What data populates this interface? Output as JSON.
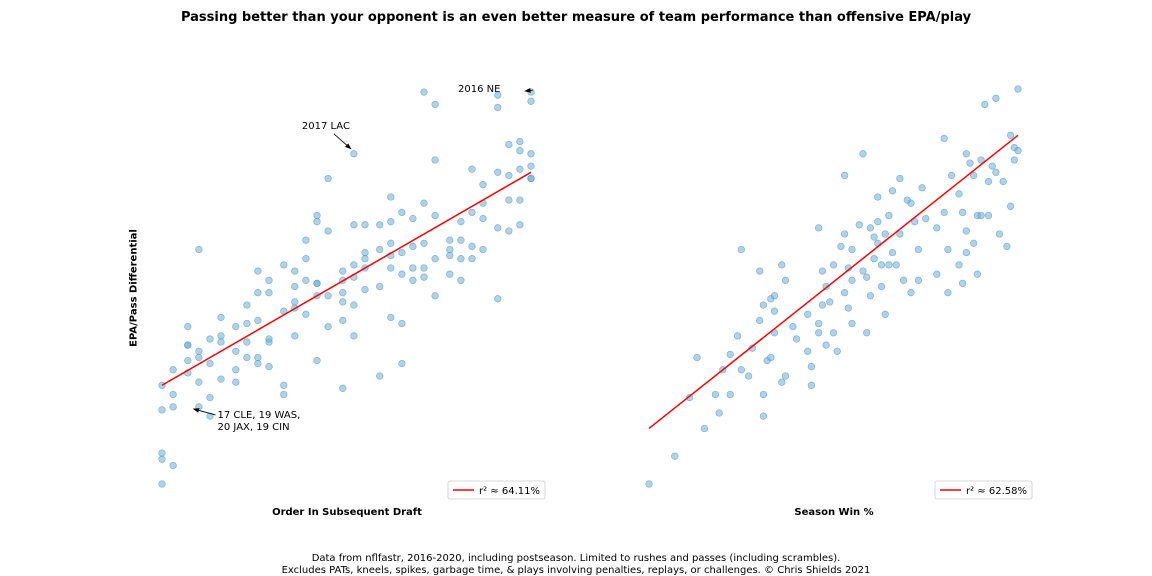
{
  "title": "Passing better than your opponent is an even better measure of team performance than offensive EPA/play",
  "ylabel": "EPA/Pass Differential",
  "caption_line1": "Data from nflfastr, 2016-2020, including postseason. Limited to rushes and passes (including scrambles).",
  "caption_line2": "Excludes PATs, kneels, spikes, garbage time, & plays involving penalties, replays, or challenges. © Chris Shields 2021",
  "colors": {
    "point_fill": "#6baed6",
    "point_edge": "#4a90c2",
    "fit_line": "#ff0000"
  },
  "chart_data": [
    {
      "type": "scatter",
      "xlabel": "Order In Subsequent Draft",
      "legend": {
        "label": "r² ≈ 64.11%",
        "placement": "lower-right"
      },
      "fit_line": {
        "from": [
          0.0,
          0.11
        ],
        "to": [
          1.0,
          0.8
        ]
      },
      "annotations": [
        {
          "text": "2016 NE",
          "point": [
            1.0,
            1.06
          ],
          "side": "left"
        },
        {
          "text": "2017 LAC",
          "point": [
            0.52,
            0.86
          ],
          "side": "above-left"
        },
        {
          "text_lines": [
            "17 CLE, 19 WAS,",
            "20 JAX, 19 CIN"
          ],
          "point": [
            0.08,
            0.03
          ],
          "side": "below-right"
        }
      ],
      "points": [
        [
          0.0,
          0.11
        ],
        [
          0.0,
          0.03
        ],
        [
          0.0,
          -0.11
        ],
        [
          0.0,
          -0.13
        ],
        [
          0.0,
          -0.21
        ],
        [
          0.03,
          0.16
        ],
        [
          0.03,
          0.08
        ],
        [
          0.03,
          0.04
        ],
        [
          0.03,
          -0.15
        ],
        [
          0.07,
          0.3
        ],
        [
          0.07,
          0.24
        ],
        [
          0.07,
          0.24
        ],
        [
          0.07,
          0.19
        ],
        [
          0.07,
          0.15
        ],
        [
          0.1,
          0.55
        ],
        [
          0.1,
          0.22
        ],
        [
          0.1,
          0.2
        ],
        [
          0.1,
          0.12
        ],
        [
          0.1,
          0.04
        ],
        [
          0.13,
          0.26
        ],
        [
          0.13,
          0.18
        ],
        [
          0.13,
          0.07
        ],
        [
          0.13,
          0.01
        ],
        [
          0.16,
          0.33
        ],
        [
          0.16,
          0.27
        ],
        [
          0.16,
          0.25
        ],
        [
          0.16,
          0.13
        ],
        [
          0.2,
          0.3
        ],
        [
          0.2,
          0.22
        ],
        [
          0.2,
          0.16
        ],
        [
          0.2,
          0.12
        ],
        [
          0.23,
          0.37
        ],
        [
          0.23,
          0.31
        ],
        [
          0.23,
          0.25
        ],
        [
          0.23,
          0.2
        ],
        [
          0.26,
          0.48
        ],
        [
          0.26,
          0.41
        ],
        [
          0.26,
          0.32
        ],
        [
          0.26,
          0.2
        ],
        [
          0.26,
          0.18
        ],
        [
          0.29,
          0.45
        ],
        [
          0.29,
          0.41
        ],
        [
          0.29,
          0.25
        ],
        [
          0.29,
          0.26
        ],
        [
          0.29,
          0.17
        ],
        [
          0.33,
          0.5
        ],
        [
          0.33,
          0.35
        ],
        [
          0.33,
          0.11
        ],
        [
          0.33,
          0.08
        ],
        [
          0.36,
          0.48
        ],
        [
          0.36,
          0.43
        ],
        [
          0.36,
          0.38
        ],
        [
          0.36,
          0.36
        ],
        [
          0.36,
          0.27
        ],
        [
          0.39,
          0.58
        ],
        [
          0.39,
          0.52
        ],
        [
          0.39,
          0.45
        ],
        [
          0.39,
          0.34
        ],
        [
          0.42,
          0.66
        ],
        [
          0.42,
          0.64
        ],
        [
          0.42,
          0.44
        ],
        [
          0.42,
          0.44
        ],
        [
          0.42,
          0.4
        ],
        [
          0.42,
          0.19
        ],
        [
          0.45,
          0.78
        ],
        [
          0.45,
          0.61
        ],
        [
          0.45,
          0.4
        ],
        [
          0.45,
          0.3
        ],
        [
          0.49,
          0.48
        ],
        [
          0.49,
          0.45
        ],
        [
          0.49,
          0.41
        ],
        [
          0.49,
          0.38
        ],
        [
          0.49,
          0.32
        ],
        [
          0.49,
          0.1
        ],
        [
          0.52,
          0.86
        ],
        [
          0.52,
          0.63
        ],
        [
          0.52,
          0.5
        ],
        [
          0.52,
          0.46
        ],
        [
          0.52,
          0.37
        ],
        [
          0.52,
          0.27
        ],
        [
          0.55,
          0.63
        ],
        [
          0.55,
          0.54
        ],
        [
          0.55,
          0.52
        ],
        [
          0.55,
          0.49
        ],
        [
          0.55,
          0.42
        ],
        [
          0.59,
          0.63
        ],
        [
          0.59,
          0.55
        ],
        [
          0.59,
          0.43
        ],
        [
          0.59,
          0.14
        ],
        [
          0.62,
          0.72
        ],
        [
          0.62,
          0.64
        ],
        [
          0.62,
          0.57
        ],
        [
          0.62,
          0.53
        ],
        [
          0.62,
          0.49
        ],
        [
          0.62,
          0.33
        ],
        [
          0.65,
          0.67
        ],
        [
          0.65,
          0.54
        ],
        [
          0.65,
          0.47
        ],
        [
          0.65,
          0.31
        ],
        [
          0.65,
          0.18
        ],
        [
          0.68,
          0.65
        ],
        [
          0.68,
          0.56
        ],
        [
          0.68,
          0.49
        ],
        [
          0.68,
          0.45
        ],
        [
          0.71,
          1.06
        ],
        [
          0.71,
          0.7
        ],
        [
          0.71,
          0.57
        ],
        [
          0.71,
          0.49
        ],
        [
          0.71,
          0.46
        ],
        [
          0.74,
          1.02
        ],
        [
          0.74,
          0.84
        ],
        [
          0.74,
          0.66
        ],
        [
          0.74,
          0.52
        ],
        [
          0.74,
          0.4
        ],
        [
          0.78,
          0.58
        ],
        [
          0.78,
          0.55
        ],
        [
          0.78,
          0.53
        ],
        [
          0.78,
          0.47
        ],
        [
          0.81,
          0.64
        ],
        [
          0.81,
          0.58
        ],
        [
          0.81,
          0.52
        ],
        [
          0.81,
          0.45
        ],
        [
          0.84,
          0.81
        ],
        [
          0.84,
          0.67
        ],
        [
          0.84,
          0.56
        ],
        [
          0.84,
          0.52
        ],
        [
          0.87,
          0.76
        ],
        [
          0.87,
          0.7
        ],
        [
          0.87,
          0.65
        ],
        [
          0.87,
          0.55
        ],
        [
          0.91,
          1.05
        ],
        [
          0.91,
          1.01
        ],
        [
          0.91,
          0.8
        ],
        [
          0.91,
          0.62
        ],
        [
          0.91,
          0.39
        ],
        [
          0.94,
          0.89
        ],
        [
          0.94,
          0.79
        ],
        [
          0.94,
          0.71
        ],
        [
          0.94,
          0.61
        ],
        [
          0.97,
          0.9
        ],
        [
          0.97,
          0.87
        ],
        [
          0.97,
          0.81
        ],
        [
          0.97,
          0.71
        ],
        [
          0.97,
          0.63
        ],
        [
          1.0,
          1.06
        ],
        [
          1.0,
          1.03
        ],
        [
          1.0,
          0.86
        ],
        [
          1.0,
          0.82
        ],
        [
          1.0,
          0.78
        ],
        [
          1.0,
          0.78
        ]
      ]
    },
    {
      "type": "scatter",
      "xlabel": "Season Win %",
      "legend": {
        "label": "r² ≈ 62.58%",
        "placement": "lower-right"
      },
      "fit_line": {
        "from": [
          0.0,
          -0.03
        ],
        "to": [
          1.0,
          0.92
        ]
      },
      "points": [
        [
          0.0,
          -0.21
        ],
        [
          0.07,
          -0.12
        ],
        [
          0.11,
          0.07
        ],
        [
          0.18,
          0.08
        ],
        [
          0.15,
          -0.03
        ],
        [
          0.13,
          0.2
        ],
        [
          0.19,
          0.02
        ],
        [
          0.2,
          0.16
        ],
        [
          0.22,
          0.08
        ],
        [
          0.22,
          0.21
        ],
        [
          0.25,
          0.55
        ],
        [
          0.25,
          0.16
        ],
        [
          0.24,
          0.27
        ],
        [
          0.27,
          0.14
        ],
        [
          0.28,
          0.23
        ],
        [
          0.31,
          0.01
        ],
        [
          0.3,
          0.48
        ],
        [
          0.3,
          0.32
        ],
        [
          0.31,
          0.37
        ],
        [
          0.31,
          0.08
        ],
        [
          0.32,
          0.19
        ],
        [
          0.33,
          0.39
        ],
        [
          0.33,
          0.2
        ],
        [
          0.36,
          0.5
        ],
        [
          0.34,
          0.4
        ],
        [
          0.34,
          0.35
        ],
        [
          0.34,
          0.28
        ],
        [
          0.36,
          0.12
        ],
        [
          0.37,
          0.45
        ],
        [
          0.37,
          0.14
        ],
        [
          0.39,
          0.3
        ],
        [
          0.4,
          0.26
        ],
        [
          0.43,
          0.34
        ],
        [
          0.43,
          0.22
        ],
        [
          0.44,
          0.11
        ],
        [
          0.44,
          0.17
        ],
        [
          0.46,
          0.31
        ],
        [
          0.46,
          0.28
        ],
        [
          0.47,
          0.48
        ],
        [
          0.47,
          0.37
        ],
        [
          0.46,
          0.62
        ],
        [
          0.48,
          0.43
        ],
        [
          0.48,
          0.24
        ],
        [
          0.49,
          0.38
        ],
        [
          0.5,
          0.28
        ],
        [
          0.5,
          0.5
        ],
        [
          0.51,
          0.22
        ],
        [
          0.52,
          0.56
        ],
        [
          0.53,
          0.79
        ],
        [
          0.53,
          0.6
        ],
        [
          0.53,
          0.41
        ],
        [
          0.54,
          0.49
        ],
        [
          0.54,
          0.36
        ],
        [
          0.55,
          0.55
        ],
        [
          0.55,
          0.45
        ],
        [
          0.55,
          0.31
        ],
        [
          0.57,
          0.63
        ],
        [
          0.58,
          0.86
        ],
        [
          0.58,
          0.48
        ],
        [
          0.59,
          0.46
        ],
        [
          0.59,
          0.28
        ],
        [
          0.6,
          0.62
        ],
        [
          0.6,
          0.4
        ],
        [
          0.61,
          0.52
        ],
        [
          0.61,
          0.59
        ],
        [
          0.62,
          0.72
        ],
        [
          0.62,
          0.64
        ],
        [
          0.62,
          0.57
        ],
        [
          0.63,
          0.43
        ],
        [
          0.63,
          0.5
        ],
        [
          0.64,
          0.6
        ],
        [
          0.64,
          0.34
        ],
        [
          0.65,
          0.66
        ],
        [
          0.65,
          0.5
        ],
        [
          0.66,
          0.74
        ],
        [
          0.66,
          0.54
        ],
        [
          0.67,
          0.5
        ],
        [
          0.68,
          0.6
        ],
        [
          0.68,
          0.78
        ],
        [
          0.69,
          0.45
        ],
        [
          0.7,
          0.71
        ],
        [
          0.71,
          0.7
        ],
        [
          0.71,
          0.41
        ],
        [
          0.72,
          0.64
        ],
        [
          0.73,
          0.55
        ],
        [
          0.73,
          0.45
        ],
        [
          0.75,
          0.65
        ],
        [
          0.74,
          0.75
        ],
        [
          0.78,
          0.62
        ],
        [
          0.78,
          0.47
        ],
        [
          0.8,
          0.91
        ],
        [
          0.8,
          0.67
        ],
        [
          0.81,
          0.55
        ],
        [
          0.81,
          0.41
        ],
        [
          0.82,
          0.79
        ],
        [
          0.84,
          0.73
        ],
        [
          0.84,
          0.5
        ],
        [
          0.85,
          0.67
        ],
        [
          0.85,
          0.44
        ],
        [
          0.86,
          0.86
        ],
        [
          0.86,
          0.61
        ],
        [
          0.86,
          0.54
        ],
        [
          0.87,
          0.83
        ],
        [
          0.88,
          0.79
        ],
        [
          0.88,
          0.57
        ],
        [
          0.89,
          0.66
        ],
        [
          0.89,
          0.47
        ],
        [
          0.9,
          0.84
        ],
        [
          0.9,
          0.66
        ],
        [
          0.91,
          1.02
        ],
        [
          0.92,
          0.77
        ],
        [
          0.92,
          0.66
        ],
        [
          0.93,
          0.82
        ],
        [
          0.94,
          1.04
        ],
        [
          0.94,
          0.8
        ],
        [
          0.95,
          0.6
        ],
        [
          0.96,
          0.77
        ],
        [
          0.97,
          0.56
        ],
        [
          0.98,
          0.69
        ],
        [
          0.99,
          0.88
        ],
        [
          1.0,
          1.07
        ],
        [
          1.0,
          0.87
        ],
        [
          0.99,
          0.84
        ],
        [
          0.98,
          0.92
        ]
      ]
    }
  ]
}
